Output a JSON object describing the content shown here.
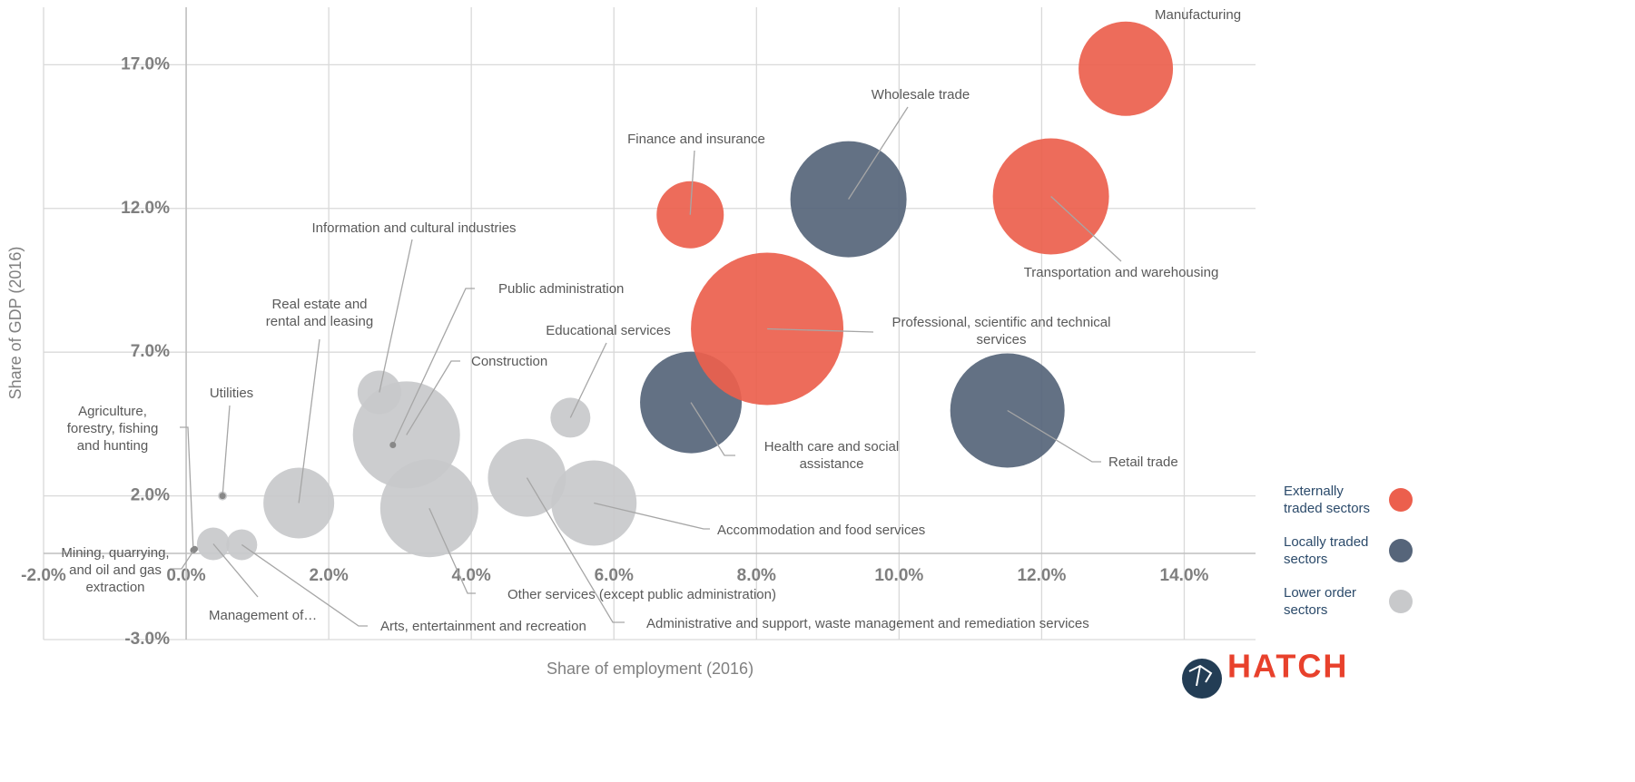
{
  "chart_data": {
    "type": "bubble",
    "x_label": "Share of employment (2016)",
    "y_label": "Share of GDP (2016)",
    "xlim": [
      -2,
      15
    ],
    "ylim": [
      -3,
      19
    ],
    "xticks": [
      {
        "value": -2,
        "label": "-2.0%"
      },
      {
        "value": 0,
        "label": "0.0%"
      },
      {
        "value": 2,
        "label": "2.0%"
      },
      {
        "value": 4,
        "label": "4.0%"
      },
      {
        "value": 6,
        "label": "6.0%"
      },
      {
        "value": 8,
        "label": "8.0%"
      },
      {
        "value": 10,
        "label": "10.0%"
      },
      {
        "value": 12,
        "label": "12.0%"
      },
      {
        "value": 14,
        "label": "14.0%"
      }
    ],
    "yticks": [
      {
        "value": -3,
        "label": "-3.0%"
      },
      {
        "value": 2,
        "label": "2.0%"
      },
      {
        "value": 7,
        "label": "7.0%"
      },
      {
        "value": 12,
        "label": "12.0%"
      },
      {
        "value": 17,
        "label": "17.0%"
      }
    ],
    "grid": true,
    "legend": "right",
    "series": [
      {
        "name": "Externally traded sectors",
        "color": "#ec5f4d",
        "labels": [
          "Manufacturing",
          "Transportation and warehousing",
          "Finance and insurance",
          "Professional, scientific and technical services"
        ],
        "x": [
          13.18,
          12.13,
          7.07,
          8.15
        ],
        "values": [
          16.86,
          12.42,
          11.78,
          7.81
        ],
        "sizes": [
          5.2,
          6.4,
          3.7,
          8.4
        ]
      },
      {
        "name": "Locally traded sectors",
        "color": "#56657a",
        "labels": [
          "Wholesale trade",
          "Health care and social assistance",
          "Retail trade"
        ],
        "x": [
          9.29,
          7.08,
          11.52
        ],
        "values": [
          12.32,
          5.25,
          4.97
        ],
        "sizes": [
          6.4,
          5.6,
          6.3
        ]
      },
      {
        "name": "Lower order sectors",
        "color": "#c8c9cb",
        "labels": [
          "Educational services",
          "Accommodation and food services",
          "Other services (except public administration)",
          "Administrative and support, waste management and remediation services",
          "Construction",
          "Public administration",
          "Information and cultural industries",
          "Real estate and rental and leasing",
          "Utilities",
          "Agriculture, forestry, fishing and hunting",
          "Mining, quarrying, and oil and gas extraction",
          "Management of…",
          "Arts, entertainment and recreation"
        ],
        "x": [
          5.39,
          5.72,
          3.41,
          4.78,
          3.09,
          2.9,
          2.71,
          1.58,
          0.51,
          0.1,
          0.12,
          0.38,
          0.78
        ],
        "values": [
          4.72,
          1.75,
          1.57,
          2.63,
          4.12,
          3.77,
          5.6,
          1.75,
          2.0,
          0.11,
          0.15,
          0.33,
          0.3
        ],
        "sizes": [
          2.2,
          4.7,
          5.4,
          4.3,
          5.9,
          0.4,
          2.4,
          3.9,
          0.5,
          0.3,
          0.3,
          1.8,
          1.7
        ]
      }
    ]
  },
  "logo": "HATCH"
}
